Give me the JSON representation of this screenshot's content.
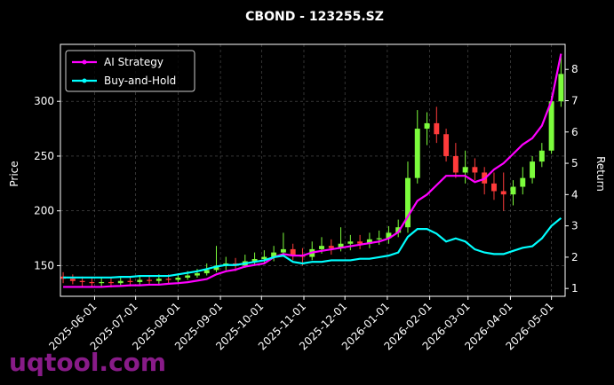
{
  "chart_data": {
    "type": "candlestick",
    "title": "CBOND - 123255.SZ",
    "ylabel": "Price",
    "y2label": "Return",
    "watermark": "uqtool.com",
    "x": [
      "2025-05-09",
      "2025-05-16",
      "2025-05-23",
      "2025-05-30",
      "2025-06-06",
      "2025-06-13",
      "2025-06-20",
      "2025-06-27",
      "2025-07-04",
      "2025-07-11",
      "2025-07-18",
      "2025-07-25",
      "2025-08-01",
      "2025-08-08",
      "2025-08-15",
      "2025-08-22",
      "2025-08-29",
      "2025-09-05",
      "2025-09-12",
      "2025-09-19",
      "2025-09-26",
      "2025-10-03",
      "2025-10-10",
      "2025-10-17",
      "2025-10-24",
      "2025-10-31",
      "2025-11-07",
      "2025-11-14",
      "2025-11-21",
      "2025-11-28",
      "2025-12-05",
      "2025-12-12",
      "2025-12-19",
      "2025-12-26",
      "2026-01-02",
      "2026-01-09",
      "2026-01-16",
      "2026-01-23",
      "2026-01-30",
      "2026-02-06",
      "2026-02-13",
      "2026-02-20",
      "2026-02-27",
      "2026-03-06",
      "2026-03-13",
      "2026-03-20",
      "2026-03-27",
      "2026-04-03",
      "2026-04-10",
      "2026-04-17",
      "2026-04-24",
      "2026-05-01",
      "2026-05-08"
    ],
    "open": [
      140,
      138,
      136,
      135,
      134,
      135,
      134,
      136,
      135,
      137,
      136,
      138,
      137,
      139,
      141,
      143,
      146,
      150,
      152,
      150,
      154,
      156,
      158,
      162,
      165,
      160,
      158,
      165,
      168,
      166,
      170,
      172,
      170,
      174,
      175,
      180,
      185,
      230,
      275,
      280,
      270,
      250,
      235,
      240,
      235,
      225,
      218,
      215,
      222,
      230,
      245,
      255,
      300
    ],
    "high": [
      144,
      142,
      140,
      139,
      139,
      139,
      140,
      140,
      141,
      141,
      142,
      142,
      143,
      145,
      147,
      152,
      168,
      158,
      157,
      160,
      162,
      164,
      168,
      180,
      170,
      166,
      172,
      176,
      174,
      185,
      178,
      178,
      180,
      182,
      186,
      192,
      245,
      292,
      290,
      295,
      275,
      262,
      255,
      248,
      240,
      235,
      235,
      228,
      240,
      250,
      262,
      305,
      342
    ],
    "low": [
      134,
      133,
      131,
      130,
      131,
      130,
      131,
      131,
      132,
      132,
      133,
      133,
      134,
      137,
      139,
      141,
      144,
      146,
      145,
      148,
      150,
      152,
      154,
      158,
      155,
      150,
      155,
      161,
      160,
      163,
      164,
      165,
      166,
      169,
      170,
      176,
      180,
      225,
      260,
      262,
      245,
      230,
      225,
      228,
      215,
      210,
      200,
      205,
      215,
      225,
      240,
      252,
      295
    ],
    "close": [
      138,
      136,
      135,
      134,
      135,
      134,
      136,
      135,
      137,
      136,
      138,
      137,
      139,
      141,
      143,
      146,
      150,
      152,
      150,
      154,
      156,
      158,
      162,
      165,
      160,
      158,
      165,
      168,
      166,
      170,
      172,
      170,
      174,
      175,
      180,
      185,
      230,
      275,
      280,
      270,
      250,
      235,
      240,
      235,
      225,
      218,
      215,
      222,
      230,
      245,
      255,
      300,
      325
    ],
    "up_color": "#7CFC3C",
    "down_color": "#FF3B3B",
    "series": [
      {
        "name": "AI Strategy",
        "color": "#FF00FF",
        "axis": "y2",
        "values": [
          1.05,
          1.05,
          1.05,
          1.05,
          1.05,
          1.07,
          1.08,
          1.1,
          1.1,
          1.12,
          1.12,
          1.15,
          1.17,
          1.2,
          1.25,
          1.3,
          1.45,
          1.55,
          1.6,
          1.7,
          1.75,
          1.8,
          2.0,
          2.1,
          2.05,
          2.05,
          2.15,
          2.2,
          2.25,
          2.3,
          2.35,
          2.4,
          2.45,
          2.5,
          2.6,
          2.8,
          3.3,
          3.8,
          4.0,
          4.3,
          4.6,
          4.6,
          4.6,
          4.4,
          4.5,
          4.8,
          5.0,
          5.3,
          5.6,
          5.8,
          6.2,
          7.0,
          8.5
        ]
      },
      {
        "name": "Buy-and-Hold",
        "color": "#00FFFF",
        "axis": "y2",
        "values": [
          1.35,
          1.35,
          1.35,
          1.35,
          1.35,
          1.35,
          1.37,
          1.37,
          1.4,
          1.4,
          1.4,
          1.4,
          1.45,
          1.5,
          1.55,
          1.62,
          1.7,
          1.75,
          1.75,
          1.8,
          1.85,
          1.9,
          2.0,
          2.05,
          1.85,
          1.8,
          1.85,
          1.85,
          1.9,
          1.9,
          1.9,
          1.95,
          1.95,
          2.0,
          2.05,
          2.15,
          2.65,
          2.9,
          2.9,
          2.75,
          2.5,
          2.6,
          2.5,
          2.25,
          2.15,
          2.1,
          2.1,
          2.2,
          2.3,
          2.35,
          2.6,
          3.0,
          3.25
        ]
      }
    ],
    "xlim": [
      "2025-05-07",
      "2026-05-11"
    ],
    "xticks": [
      "2025-06-01",
      "2025-07-01",
      "2025-08-01",
      "2025-09-01",
      "2025-10-01",
      "2025-11-01",
      "2025-12-01",
      "2026-01-01",
      "2026-02-01",
      "2026-03-01",
      "2026-04-01",
      "2026-05-01"
    ],
    "ylim": [
      122,
      352
    ],
    "yticks": [
      150,
      200,
      250,
      300
    ],
    "y2lim": [
      0.75,
      8.8
    ],
    "y2ticks": [
      1,
      2,
      3,
      4,
      5,
      6,
      7,
      8
    ],
    "grid": true,
    "legend": "upper left"
  }
}
